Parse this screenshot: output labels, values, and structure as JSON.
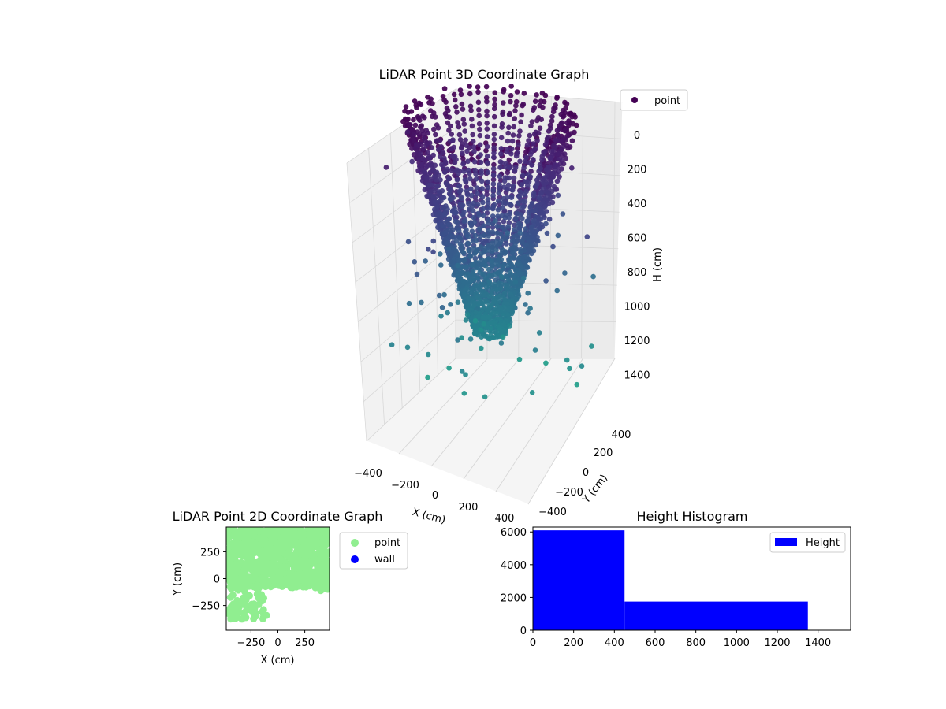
{
  "chart_data": [
    {
      "type": "scatter",
      "title": "LiDAR Point 3D Coordinate Graph",
      "xlabel": "X (cm)",
      "ylabel": "Y (cm)",
      "zlabel": "H (cm)",
      "x_ticks": [
        "−400",
        "−200",
        "0",
        "200",
        "400"
      ],
      "y_ticks": [
        "−400",
        "−200",
        "0",
        "200",
        "400"
      ],
      "z_ticks": [
        "0",
        "200",
        "400",
        "600",
        "800",
        "1000",
        "1200",
        "1400"
      ],
      "z_axis_inverted": true,
      "colormap": "viridis",
      "legend": [
        {
          "label": "point",
          "color": "#440154"
        }
      ],
      "legend_position": "top-right",
      "grid": true,
      "structure": "cylindrical point cloud: ring of points near H=0 with radius ~400, converging to dense cluster near H≈1000–1200 at the center; sparse scattered points reaching H≈1400"
    },
    {
      "type": "scatter",
      "title": "LiDAR Point 2D Coordinate Graph",
      "xlabel": "X (cm)",
      "ylabel": "Y (cm)",
      "x_ticks": [
        "−250",
        "0",
        "250"
      ],
      "y_ticks": [
        "250",
        "0",
        "−250"
      ],
      "xlim": [
        -480,
        480
      ],
      "ylim": [
        -480,
        480
      ],
      "series": [
        {
          "name": "point",
          "color": "#90ee90"
        },
        {
          "name": "wall",
          "color": "#0000ff"
        }
      ],
      "legend_position": "outside-right"
    },
    {
      "type": "bar",
      "title": "Height Histogram",
      "x_ticks": [
        "0",
        "200",
        "400",
        "600",
        "800",
        "1000",
        "1200",
        "1400"
      ],
      "y_ticks": [
        "0",
        "2000",
        "4000",
        "6000"
      ],
      "xlim": [
        0,
        1560
      ],
      "ylim": [
        0,
        6300
      ],
      "bins": [
        {
          "from": 0,
          "to": 450,
          "count": 6100
        },
        {
          "from": 450,
          "to": 1350,
          "count": 1750
        }
      ],
      "series": [
        {
          "name": "Height",
          "color": "#0000ff"
        }
      ],
      "legend_position": "top-right"
    }
  ]
}
